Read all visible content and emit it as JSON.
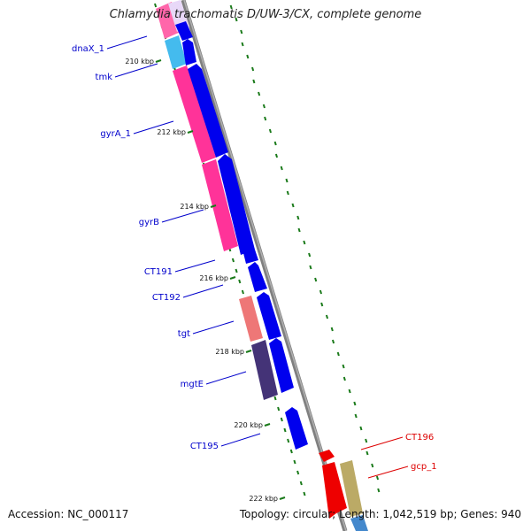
{
  "title": "Chlamydia trachomatis D/UW-3/CX, complete genome",
  "footer": {
    "accession": "Accession: NC_000117",
    "summary": "Topology: circular; Length: 1,042,519 bp; Genes: 940"
  },
  "colors": {
    "backbone": "#808080",
    "forward_cds": "#0000ee",
    "label_blue": "#0000cc",
    "label_red": "#dd0000",
    "gc_ticks": "#1a7a1a"
  },
  "ticks": [
    "210 kbp",
    "212 kbp",
    "214 kbp",
    "216 kbp",
    "218 kbp",
    "220 kbp",
    "222 kbp"
  ],
  "gene_labels": [
    {
      "name": "dnaX_1",
      "color": "#0000cc"
    },
    {
      "name": "tmk",
      "color": "#0000cc"
    },
    {
      "name": "gyrA_1",
      "color": "#0000cc"
    },
    {
      "name": "gyrB",
      "color": "#0000cc"
    },
    {
      "name": "CT191",
      "color": "#0000cc"
    },
    {
      "name": "CT192",
      "color": "#0000cc"
    },
    {
      "name": "tgt",
      "color": "#0000cc"
    },
    {
      "name": "mgtE",
      "color": "#0000cc"
    },
    {
      "name": "CT195",
      "color": "#0000cc"
    },
    {
      "name": "CT196",
      "color": "#dd0000"
    },
    {
      "name": "gcp_1",
      "color": "#dd0000"
    }
  ]
}
